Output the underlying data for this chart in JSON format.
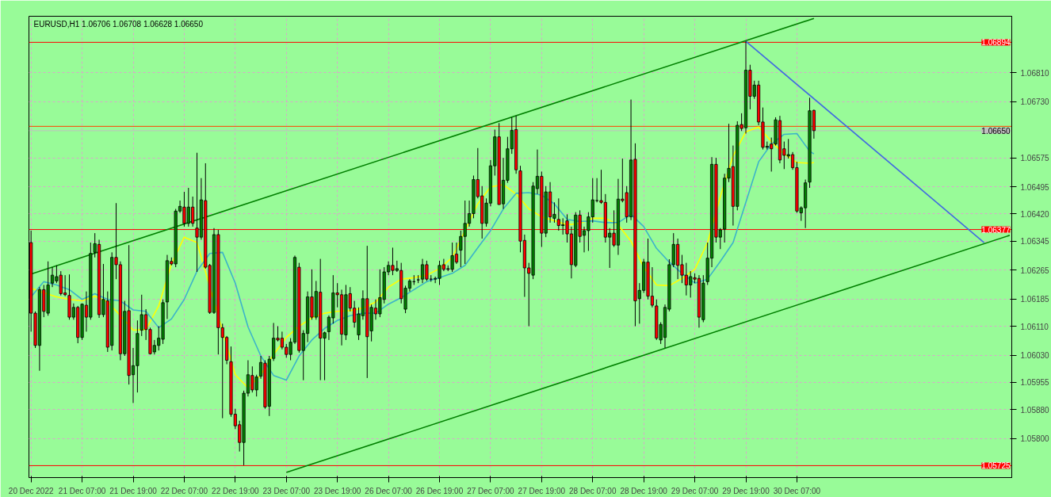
{
  "chart_data": {
    "type": "candlestick",
    "title": "EURUSD,H1  1.06706 1.06708 1.06628 1.06650",
    "categories": [
      "20 Dec 2022",
      null,
      null,
      null,
      null,
      null,
      null,
      null,
      null,
      null,
      null,
      null,
      "21 Dec 07:00",
      null,
      null,
      null,
      null,
      null,
      null,
      null,
      null,
      null,
      null,
      null,
      "21 Dec 19:00",
      null,
      null,
      null,
      null,
      null,
      null,
      null,
      null,
      null,
      null,
      null,
      "22 Dec 07:00",
      null,
      null,
      null,
      null,
      null,
      null,
      null,
      null,
      null,
      null,
      null,
      "22 Dec 19:00",
      null,
      null,
      null,
      null,
      null,
      null,
      null,
      null,
      null,
      null,
      null,
      "23 Dec 07:00",
      null,
      null,
      null,
      null,
      null,
      null,
      null,
      null,
      null,
      null,
      null,
      "23 Dec 19:00",
      null,
      null,
      null,
      null,
      null,
      null,
      null,
      null,
      null,
      null,
      null,
      "26 Dec 07:00",
      null,
      null,
      null,
      null,
      null,
      null,
      null,
      null,
      null,
      null,
      null,
      "26 Dec 19:00",
      null,
      null,
      null,
      null,
      null,
      null,
      null,
      null,
      null,
      null,
      null,
      "27 Dec 07:00",
      null,
      null,
      null,
      null,
      null,
      null,
      null,
      null,
      null,
      null,
      null,
      "27 Dec 19:00",
      null,
      null,
      null,
      null,
      null,
      null,
      null,
      null,
      null,
      null,
      null,
      "28 Dec 07:00",
      null,
      null,
      null,
      null,
      null,
      null,
      null,
      null,
      null,
      null,
      null,
      "28 Dec 19:00",
      null,
      null,
      null,
      null,
      null,
      null,
      null,
      null,
      null,
      null,
      null,
      "29 Dec 07:00",
      null,
      null,
      null,
      null,
      null,
      null,
      null,
      null,
      null,
      null,
      null,
      "29 Dec 19:00",
      null,
      null,
      null,
      null,
      null,
      null,
      null,
      null,
      null,
      null,
      null,
      "30 Dec 07:00",
      null,
      null,
      null,
      null,
      null,
      null,
      null,
      null,
      null,
      null,
      null,
      null,
      null,
      null,
      null,
      null,
      null,
      null,
      null,
      null,
      null,
      null,
      null,
      null,
      null,
      null,
      null,
      null,
      null,
      null,
      null,
      null,
      null,
      null,
      null,
      null,
      null,
      null,
      null,
      null,
      null,
      null,
      null,
      null,
      null,
      null,
      null,
      null,
      null,
      null
    ],
    "ohlc": [
      [
        1.06341,
        1.06374,
        1.06095,
        1.06146
      ],
      [
        1.06146,
        1.06151,
        1.0605,
        1.06057
      ],
      [
        1.06057,
        1.06218,
        1.05987,
        1.06211
      ],
      [
        1.06211,
        1.06224,
        1.06135,
        1.06151
      ],
      [
        1.06146,
        1.06289,
        1.06139,
        1.06224
      ],
      [
        1.06229,
        1.06273,
        1.06218,
        1.06251
      ],
      [
        1.06235,
        1.06278,
        1.06229,
        1.06247
      ],
      [
        1.06251,
        1.06262,
        1.06195,
        1.062
      ],
      [
        1.06202,
        1.06251,
        1.06193,
        1.06197
      ],
      [
        1.06195,
        1.06253,
        1.06128,
        1.06135
      ],
      [
        1.06135,
        1.06173,
        1.06128,
        1.06162
      ],
      [
        1.06162,
        1.06166,
        1.06063,
        1.06079
      ],
      [
        1.06079,
        1.06173,
        1.06072,
        1.06171
      ],
      [
        1.06168,
        1.06206,
        1.06095,
        1.06135
      ],
      [
        1.06135,
        1.06341,
        1.06128,
        1.06311
      ],
      [
        1.06314,
        1.06367,
        1.063,
        1.06338
      ],
      [
        1.06336,
        1.06349,
        1.06133,
        1.06142
      ],
      [
        1.06142,
        1.06282,
        1.06135,
        1.06184
      ],
      [
        1.0618,
        1.06206,
        1.06039,
        1.06052
      ],
      [
        1.06057,
        1.06314,
        1.06043,
        1.063
      ],
      [
        1.063,
        1.0645,
        1.0624,
        1.0628
      ],
      [
        1.0628,
        1.06289,
        1.06016,
        1.06034
      ],
      [
        1.06034,
        1.0618,
        1.06028,
        1.06151
      ],
      [
        1.06153,
        1.06334,
        1.05949,
        1.05974
      ],
      [
        1.05976,
        1.0605,
        1.05898,
        1.06001
      ],
      [
        1.06001,
        1.06126,
        1.05927,
        1.0609
      ],
      [
        1.06099,
        1.06197,
        1.06083,
        1.06142
      ],
      [
        1.06142,
        1.06157,
        1.06072,
        1.06101
      ],
      [
        1.06101,
        1.06106,
        1.06032,
        1.06034
      ],
      [
        1.06039,
        1.06072,
        1.06032,
        1.06057
      ],
      [
        1.06057,
        1.0611,
        1.06043,
        1.06077
      ],
      [
        1.06074,
        1.06184,
        1.06061,
        1.06175
      ],
      [
        1.06177,
        1.06307,
        1.0613,
        1.06291
      ],
      [
        1.06289,
        1.063,
        1.06278,
        1.06282
      ],
      [
        1.06282,
        1.06434,
        1.06273,
        1.06428
      ],
      [
        1.06428,
        1.06457,
        1.06423,
        1.06441
      ],
      [
        1.06439,
        1.06481,
        1.06385,
        1.06394
      ],
      [
        1.06394,
        1.06492,
        1.06385,
        1.06439
      ],
      [
        1.06439,
        1.06468,
        1.06385,
        1.06394
      ],
      [
        1.06381,
        1.06589,
        1.0626,
        1.06356
      ],
      [
        1.06356,
        1.06519,
        1.06349,
        1.06459
      ],
      [
        1.06457,
        1.0656,
        1.06269,
        1.06273
      ],
      [
        1.06278,
        1.06282,
        1.06144,
        1.06148
      ],
      [
        1.06148,
        1.06381,
        1.06144,
        1.06363
      ],
      [
        1.06363,
        1.06376,
        1.06032,
        1.06106
      ],
      [
        1.06106,
        1.06117,
        1.05856,
        1.06079
      ],
      [
        1.06079,
        1.06083,
        1.06005,
        1.06016
      ],
      [
        1.06012,
        1.06054,
        1.0586,
        1.05867
      ],
      [
        1.05867,
        1.05882,
        1.05826,
        1.05835
      ],
      [
        1.05838,
        1.05849,
        1.05764,
        1.05789
      ],
      [
        1.05789,
        1.05932,
        1.05726,
        1.05925
      ],
      [
        1.05925,
        1.06016,
        1.05916,
        1.05976
      ],
      [
        1.05974,
        1.05999,
        1.05927,
        1.05934
      ],
      [
        1.05934,
        1.05976,
        1.05916,
        1.0597
      ],
      [
        1.05972,
        1.06028,
        1.05965,
        1.0601
      ],
      [
        1.06008,
        1.06016,
        1.05882,
        1.05887
      ],
      [
        1.05889,
        1.06028,
        1.05862,
        1.06019
      ],
      [
        1.06021,
        1.06119,
        1.06014,
        1.06077
      ],
      [
        1.06077,
        1.0611,
        1.06068,
        1.06072
      ],
      [
        1.06077,
        1.06095,
        1.06046,
        1.06052
      ],
      [
        1.06052,
        1.06061,
        1.06023,
        1.06032
      ],
      [
        1.06032,
        1.06077,
        1.06016,
        1.06066
      ],
      [
        1.06066,
        1.06305,
        1.06061,
        1.063
      ],
      [
        1.06273,
        1.06285,
        1.06037,
        1.06043
      ],
      [
        1.06043,
        1.06099,
        1.05961,
        1.0609
      ],
      [
        1.0609,
        1.06206,
        1.06066,
        1.06191
      ],
      [
        1.06191,
        1.06267,
        1.06128,
        1.06135
      ],
      [
        1.06135,
        1.06235,
        1.06128,
        1.06206
      ],
      [
        1.06204,
        1.06296,
        1.05961,
        1.06077
      ],
      [
        1.06077,
        1.06095,
        1.05961,
        1.06092
      ],
      [
        1.06095,
        1.0614,
        1.06072,
        1.06135
      ],
      [
        1.06133,
        1.06251,
        1.06117,
        1.06202
      ],
      [
        1.06202,
        1.06229,
        1.06162,
        1.06197
      ],
      [
        1.06197,
        1.06211,
        1.06057,
        1.06088
      ],
      [
        1.06086,
        1.06224,
        1.06072,
        1.06197
      ],
      [
        1.062,
        1.06218,
        1.06151,
        1.0616
      ],
      [
        1.0616,
        1.0618,
        1.06106,
        1.06121
      ],
      [
        1.06086,
        1.06162,
        1.06072,
        1.06144
      ],
      [
        1.06139,
        1.06209,
        1.06128,
        1.06186
      ],
      [
        1.06186,
        1.06332,
        1.05967,
        1.06081
      ],
      [
        1.06097,
        1.0617,
        1.06068,
        1.06162
      ],
      [
        1.0616,
        1.06184,
        1.06128,
        1.06144
      ],
      [
        1.06144,
        1.06267,
        1.06135,
        1.06189
      ],
      [
        1.06184,
        1.06273,
        1.06173,
        1.0626
      ],
      [
        1.0626,
        1.06289,
        1.06251,
        1.06278
      ],
      [
        1.06278,
        1.06327,
        1.06251,
        1.06264
      ],
      [
        1.06264,
        1.06291,
        1.0626,
        1.06269
      ],
      [
        1.06264,
        1.06285,
        1.06173,
        1.06186
      ],
      [
        1.06157,
        1.06222,
        1.06146,
        1.06215
      ],
      [
        1.06215,
        1.0624,
        1.06206,
        1.06235
      ],
      [
        1.06233,
        1.06251,
        1.06224,
        1.06233
      ],
      [
        1.06238,
        1.06251,
        1.06229,
        1.06238
      ],
      [
        1.0624,
        1.06296,
        1.06229,
        1.0628
      ],
      [
        1.0628,
        1.06291,
        1.06235,
        1.0624
      ],
      [
        1.0624,
        1.06251,
        1.06233,
        1.0624
      ],
      [
        1.0624,
        1.06247,
        1.06229,
        1.06242
      ],
      [
        1.06242,
        1.06291,
        1.06224,
        1.06278
      ],
      [
        1.0628,
        1.06296,
        1.06262,
        1.06267
      ],
      [
        1.06267,
        1.06278,
        1.06262,
        1.06269
      ],
      [
        1.06267,
        1.06341,
        1.0626,
        1.06305
      ],
      [
        1.06309,
        1.06341,
        1.06282,
        1.06287
      ],
      [
        1.0632,
        1.06374,
        1.06273,
        1.06358
      ],
      [
        1.06358,
        1.06457,
        1.06282,
        1.06394
      ],
      [
        1.06394,
        1.06457,
        1.06385,
        1.06421
      ],
      [
        1.06421,
        1.06526,
        1.06408,
        1.06515
      ],
      [
        1.06515,
        1.06602,
        1.06463,
        1.06468
      ],
      [
        1.0647,
        1.06497,
        1.06352,
        1.06394
      ],
      [
        1.06394,
        1.06463,
        1.06385,
        1.0645
      ],
      [
        1.0645,
        1.06569,
        1.06441,
        1.06553
      ],
      [
        1.06553,
        1.06653,
        1.06526,
        1.06633
      ],
      [
        1.06633,
        1.06671,
        1.06446,
        1.06446
      ],
      [
        1.06448,
        1.06575,
        1.06434,
        1.06513
      ],
      [
        1.06513,
        1.06633,
        1.06506,
        1.066
      ],
      [
        1.066,
        1.06687,
        1.06586,
        1.06651
      ],
      [
        1.06653,
        1.06691,
        1.06531,
        1.06542
      ],
      [
        1.06539,
        1.06553,
        1.06314,
        1.06345
      ],
      [
        1.06347,
        1.06363,
        1.06191,
        1.06271
      ],
      [
        1.06271,
        1.06285,
        1.0611,
        1.06256
      ],
      [
        1.06251,
        1.06508,
        1.0624,
        1.06497
      ],
      [
        1.0649,
        1.06598,
        1.06475,
        1.06524
      ],
      [
        1.06524,
        1.06537,
        1.06329,
        1.06367
      ],
      [
        1.06367,
        1.06497,
        1.06356,
        1.06481
      ],
      [
        1.06481,
        1.06508,
        1.06396,
        1.06412
      ],
      [
        1.06408,
        1.06452,
        1.06396,
        1.06419
      ],
      [
        1.06405,
        1.06463,
        1.06374,
        1.06388
      ],
      [
        1.06388,
        1.06408,
        1.06363,
        1.0639
      ],
      [
        1.06401,
        1.06419,
        1.06341,
        1.06365
      ],
      [
        1.06365,
        1.06385,
        1.06242,
        1.0628
      ],
      [
        1.06278,
        1.06425,
        1.06273,
        1.06417
      ],
      [
        1.06417,
        1.0643,
        1.06341,
        1.06358
      ],
      [
        1.06361,
        1.06385,
        1.06314,
        1.06374
      ],
      [
        1.06374,
        1.06425,
        1.06318,
        1.06412
      ],
      [
        1.06412,
        1.06519,
        1.06396,
        1.06459
      ],
      [
        1.06457,
        1.06519,
        1.06452,
        1.06457
      ],
      [
        1.06457,
        1.06542,
        1.06448,
        1.06452
      ],
      [
        1.06452,
        1.06475,
        1.06341,
        1.06356
      ],
      [
        1.06356,
        1.06381,
        1.06271,
        1.06367
      ],
      [
        1.06367,
        1.0643,
        1.06329,
        1.06334
      ],
      [
        1.06334,
        1.06517,
        1.06307,
        1.06461
      ],
      [
        1.06461,
        1.06573,
        1.06452,
        1.06457
      ],
      [
        1.06479,
        1.06497,
        1.06396,
        1.06412
      ],
      [
        1.06412,
        1.06736,
        1.06403,
        1.06569
      ],
      [
        1.06571,
        1.06615,
        1.0611,
        1.0618
      ],
      [
        1.06186,
        1.06229,
        1.06117,
        1.06209
      ],
      [
        1.06209,
        1.06296,
        1.06202,
        1.06287
      ],
      [
        1.06287,
        1.06352,
        1.06184,
        1.06193
      ],
      [
        1.06193,
        1.06273,
        1.06162,
        1.06168
      ],
      [
        1.06166,
        1.06184,
        1.06072,
        1.06077
      ],
      [
        1.06072,
        1.06121,
        1.06061,
        1.06115
      ],
      [
        1.06079,
        1.0617,
        1.0605,
        1.06162
      ],
      [
        1.06157,
        1.06295,
        1.06151,
        1.0628
      ],
      [
        1.0628,
        1.06367,
        1.06273,
        1.06336
      ],
      [
        1.06336,
        1.06352,
        1.0624,
        1.06278
      ],
      [
        1.0628,
        1.06307,
        1.06229,
        1.06251
      ],
      [
        1.06251,
        1.06285,
        1.06195,
        1.06224
      ],
      [
        1.06224,
        1.06262,
        1.06189,
        1.06247
      ],
      [
        1.06244,
        1.06256,
        1.06229,
        1.0624
      ],
      [
        1.06242,
        1.06251,
        1.06106,
        1.06135
      ],
      [
        1.06128,
        1.06251,
        1.06121,
        1.06229
      ],
      [
        1.06233,
        1.06341,
        1.06224,
        1.06298
      ],
      [
        1.06298,
        1.06577,
        1.06273,
        1.06557
      ],
      [
        1.06557,
        1.06575,
        1.06341,
        1.06356
      ],
      [
        1.06356,
        1.06381,
        1.06323,
        1.06376
      ],
      [
        1.06378,
        1.06531,
        1.06341,
        1.06519
      ],
      [
        1.06519,
        1.06669,
        1.06508,
        1.06546
      ],
      [
        1.06551,
        1.06609,
        1.06388,
        1.06441
      ],
      [
        1.06441,
        1.06676,
        1.0643,
        1.06665
      ],
      [
        1.06667,
        1.06698,
        1.06649,
        1.06656
      ],
      [
        1.06658,
        1.06897,
        1.06642,
        1.06817
      ],
      [
        1.06817,
        1.06832,
        1.06709,
        1.06745
      ],
      [
        1.06745,
        1.06788,
        1.06738,
        1.06776
      ],
      [
        1.06776,
        1.06788,
        1.06665,
        1.06674
      ],
      [
        1.06674,
        1.06714,
        1.06598,
        1.06604
      ],
      [
        1.06604,
        1.0662,
        1.06598,
        1.06607
      ],
      [
        1.06613,
        1.06631,
        1.06537,
        1.066
      ],
      [
        1.06613,
        1.06687,
        1.06609,
        1.0668
      ],
      [
        1.06678,
        1.06691,
        1.0656,
        1.06569
      ],
      [
        1.066,
        1.0662,
        1.06544,
        1.06582
      ],
      [
        1.0658,
        1.06627,
        1.06573,
        1.06584
      ],
      [
        1.06584,
        1.06591,
        1.06542,
        1.06548
      ],
      [
        1.06548,
        1.06564,
        1.06423,
        1.06428
      ],
      [
        1.06423,
        1.06441,
        1.06401,
        1.06437
      ],
      [
        1.06437,
        1.06515,
        1.06381,
        1.06506
      ],
      [
        1.06508,
        1.06741,
        1.06492,
        1.06705
      ],
      [
        1.06706,
        1.06708,
        1.06628,
        1.0665
      ],
      null,
      null,
      null,
      null,
      null,
      null,
      null,
      null,
      null,
      null,
      null,
      null,
      null,
      null,
      null,
      null,
      null,
      null,
      null,
      null,
      null,
      null,
      null,
      null,
      null,
      null,
      null,
      null,
      null,
      null,
      null,
      null,
      null,
      null,
      null,
      null,
      null,
      null,
      null,
      null,
      null,
      null,
      null,
      null,
      null,
      null
    ],
    "series": [
      {
        "type": "line",
        "color": "#ffff00",
        "values": [
          1.06215,
          null,
          null,
          1.06202,
          null,
          null,
          1.06191,
          null,
          null,
          1.06184,
          null,
          null,
          1.0618,
          null,
          null,
          1.06193,
          null,
          null,
          1.06177,
          null,
          null,
          1.06139,
          null,
          null,
          1.06099,
          null,
          null,
          1.06101,
          null,
          null,
          1.06166,
          null,
          null,
          1.06282,
          null,
          null,
          1.06356,
          null,
          null,
          1.06341,
          null,
          null,
          null,
          null,
          null,
          null,
          null,
          null,
          1.05976,
          null,
          null,
          1.0594,
          null,
          null,
          1.05976,
          null,
          null,
          1.06032,
          null,
          null,
          1.06079,
          null,
          null,
          1.0611,
          null,
          null,
          1.06133,
          null,
          null,
          1.06146,
          null,
          null,
          1.06151,
          null,
          null,
          1.06153,
          null,
          null,
          1.0616,
          null,
          null,
          1.06177,
          null,
          null,
          1.06218,
          null,
          null,
          1.0624,
          null,
          null,
          1.06244,
          null,
          null,
          1.06251,
          null,
          null,
          1.06269,
          null,
          null,
          1.063,
          null,
          null,
          null,
          null,
          null,
          1.06448,
          null,
          null,
          1.06495,
          null,
          null,
          1.06501,
          null,
          null,
          1.06475,
          null,
          null,
          1.06434,
          null,
          null,
          1.06412,
          null,
          null,
          1.06401,
          null,
          null,
          1.0639,
          null,
          null,
          1.06394,
          null,
          null,
          1.06408,
          null,
          null,
          1.06408,
          null,
          null,
          1.0639,
          null,
          null,
          1.06345,
          null,
          null,
          1.06273,
          null,
          null,
          1.06224,
          null,
          null,
          1.06222,
          null,
          null,
          1.06242,
          null,
          null,
          1.06267,
          null,
          null,
          1.06341,
          null,
          null,
          1.06468,
          null,
          null,
          1.0658,
          null,
          null,
          1.06647,
          null,
          null,
          1.0666,
          null,
          null,
          1.0662,
          null,
          null,
          1.06586,
          null,
          null,
          1.06562,
          null,
          null,
          1.0656,
          1.06562,
          null,
          null,
          null,
          null,
          null,
          null,
          null,
          null,
          null,
          null,
          null,
          null,
          null,
          null,
          null,
          null,
          null,
          null,
          null,
          null,
          null,
          null,
          null,
          null,
          null,
          null,
          null,
          null,
          null,
          null,
          null,
          null,
          null,
          null,
          null,
          null,
          null,
          null,
          null,
          null,
          null,
          null,
          null,
          null,
          null,
          null
        ]
      },
      {
        "type": "line",
        "color": "#3cb4c8",
        "values": [
          1.06191,
          null,
          null,
          1.06233,
          null,
          null,
          1.06224,
          null,
          null,
          1.06211,
          null,
          null,
          1.06184,
          null,
          null,
          1.062,
          null,
          null,
          1.06184,
          null,
          null,
          1.0618,
          null,
          null,
          1.06155,
          null,
          null,
          1.06151,
          null,
          null,
          1.06106,
          null,
          null,
          1.0613,
          null,
          null,
          1.06184,
          null,
          null,
          1.06262,
          null,
          null,
          1.06311,
          null,
          null,
          1.06314,
          null,
          null,
          1.06229,
          null,
          null,
          1.06108,
          null,
          null,
          1.06028,
          null,
          null,
          1.05974,
          null,
          null,
          1.05961,
          null,
          null,
          1.06028,
          null,
          null,
          1.06072,
          null,
          null,
          1.06104,
          null,
          null,
          1.06126,
          null,
          null,
          1.06139,
          null,
          null,
          1.06146,
          null,
          null,
          1.06146,
          null,
          null,
          1.06171,
          null,
          null,
          1.06189,
          null,
          null,
          1.06211,
          null,
          null,
          1.06233,
          null,
          null,
          1.06244,
          null,
          null,
          1.06256,
          null,
          null,
          1.06278,
          null,
          null,
          1.06327,
          null,
          null,
          1.06374,
          null,
          null,
          1.06434,
          null,
          null,
          1.06477,
          null,
          null,
          1.06479,
          null,
          null,
          1.06472,
          null,
          null,
          1.06448,
          null,
          null,
          1.06405,
          null,
          null,
          1.06399,
          null,
          null,
          1.06401,
          null,
          null,
          1.06396,
          null,
          null,
          1.06396,
          null,
          null,
          1.06419,
          null,
          null,
          1.06385,
          null,
          null,
          1.06325,
          null,
          null,
          1.06287,
          null,
          null,
          1.06256,
          null,
          null,
          1.06229,
          null,
          null,
          1.0624,
          null,
          null,
          1.06289,
          null,
          null,
          1.06341,
          null,
          null,
          1.06452,
          null,
          null,
          1.06564,
          null,
          null,
          1.06613,
          null,
          null,
          1.0664,
          null,
          null,
          1.06642,
          null,
          null,
          1.06593,
          1.06586,
          null,
          null,
          null,
          null,
          null,
          null,
          null,
          null,
          null,
          null,
          null,
          null,
          null,
          null,
          null,
          null,
          null,
          null,
          null,
          null,
          null,
          null,
          null,
          null,
          null,
          null,
          null,
          null,
          null,
          null,
          null,
          null,
          null,
          null,
          null,
          null,
          null,
          null,
          null,
          null,
          null,
          null,
          null,
          null,
          null,
          null
        ]
      },
      {
        "type": "line",
        "color": "#008000",
        "values": [
          1.06254,
          null,
          null,
          null,
          null,
          null,
          null,
          null,
          null,
          null,
          null,
          null,
          null,
          null,
          null,
          null,
          null,
          null,
          null,
          null,
          null,
          null,
          null,
          null,
          null,
          null,
          null,
          null,
          null,
          null,
          null,
          null,
          null,
          null,
          null,
          null,
          null,
          null,
          null,
          null,
          null,
          null,
          null,
          null,
          null,
          null,
          null,
          null,
          null,
          null,
          null,
          null,
          null,
          null,
          null,
          null,
          null,
          null,
          null,
          null,
          null,
          null,
          null,
          null,
          null,
          null,
          null,
          null,
          null,
          null,
          null,
          null,
          null,
          null,
          null,
          null,
          null,
          null,
          null,
          null,
          null,
          null,
          null,
          null,
          null,
          null,
          null,
          null,
          null,
          null,
          null,
          null,
          null,
          null,
          null,
          null,
          null,
          null,
          null,
          null,
          null,
          null,
          null,
          null,
          null,
          null,
          null,
          null,
          null,
          null,
          null,
          null,
          null,
          null,
          null,
          null,
          null,
          null,
          null,
          null,
          null,
          null,
          null,
          null,
          null,
          null,
          null,
          null,
          null,
          null,
          null,
          null,
          null,
          null,
          null,
          null,
          null,
          null,
          null,
          null,
          null,
          null,
          null,
          null,
          null,
          null,
          null,
          null,
          null,
          null,
          null,
          null,
          null,
          null,
          null,
          null,
          null,
          null,
          null,
          null,
          null,
          null,
          null,
          null,
          null,
          null,
          null,
          null,
          null,
          null,
          null,
          null,
          null,
          null,
          null,
          null,
          null,
          null,
          null,
          null,
          null,
          null,
          null,
          null,
          1.0696,
          null,
          null,
          null,
          null,
          null,
          null,
          null,
          null,
          null,
          null,
          null,
          null,
          null,
          null,
          null,
          null,
          null,
          null,
          null,
          null,
          null,
          null,
          null,
          null,
          null,
          null,
          null,
          null,
          null,
          null,
          null,
          null,
          null,
          null,
          null,
          null,
          null,
          null,
          null,
          null,
          null,
          null,
          null,
          null,
          null,
          null
        ]
      },
      {
        "type": "line",
        "color": "#008000",
        "values": [
          null,
          null,
          null,
          null,
          null,
          null,
          null,
          null,
          null,
          null,
          null,
          null,
          null,
          null,
          null,
          null,
          null,
          null,
          null,
          null,
          null,
          null,
          null,
          null,
          null,
          null,
          null,
          null,
          null,
          null,
          null,
          null,
          null,
          null,
          null,
          null,
          null,
          null,
          null,
          null,
          null,
          null,
          null,
          null,
          null,
          null,
          null,
          null,
          null,
          null,
          null,
          null,
          null,
          null,
          null,
          null,
          null,
          null,
          null,
          null,
          1.05706,
          null,
          null,
          null,
          null,
          null,
          null,
          null,
          null,
          null,
          null,
          null,
          null,
          null,
          null,
          null,
          null,
          null,
          null,
          null,
          null,
          null,
          null,
          null,
          null,
          null,
          null,
          null,
          null,
          null,
          null,
          null,
          null,
          null,
          null,
          null,
          null,
          null,
          null,
          null,
          null,
          null,
          null,
          null,
          null,
          null,
          null,
          null,
          null,
          null,
          null,
          null,
          null,
          null,
          null,
          null,
          null,
          null,
          null,
          null,
          null,
          null,
          null,
          null,
          null,
          null,
          null,
          null,
          null,
          null,
          null,
          null,
          null,
          null,
          null,
          null,
          null,
          null,
          null,
          null,
          null,
          null,
          null,
          null,
          null,
          null,
          null,
          null,
          null,
          null,
          null,
          null,
          null,
          null,
          null,
          null,
          null,
          null,
          null,
          null,
          null,
          null,
          null,
          null,
          null,
          null,
          null,
          null,
          null,
          null,
          null,
          null,
          null,
          null,
          null,
          null,
          null,
          null,
          null,
          null,
          null,
          null,
          null,
          null,
          null,
          null,
          null,
          null,
          null,
          null,
          null,
          null,
          null,
          null,
          null,
          null,
          null,
          null,
          null,
          null,
          null,
          null,
          null,
          null,
          null,
          null,
          null,
          null,
          null,
          null,
          null,
          null,
          null,
          null,
          null,
          null,
          null,
          null,
          null,
          null,
          null,
          null,
          null,
          null,
          null,
          null,
          null,
          null,
          null,
          null,
          1.06361
        ]
      },
      {
        "type": "line",
        "color": "#4169e1",
        "values": [
          null,
          null,
          null,
          null,
          null,
          null,
          null,
          null,
          null,
          null,
          null,
          null,
          null,
          null,
          null,
          null,
          null,
          null,
          null,
          null,
          null,
          null,
          null,
          null,
          null,
          null,
          null,
          null,
          null,
          null,
          null,
          null,
          null,
          null,
          null,
          null,
          null,
          null,
          null,
          null,
          null,
          null,
          null,
          null,
          null,
          null,
          null,
          null,
          null,
          null,
          null,
          null,
          null,
          null,
          null,
          null,
          null,
          null,
          null,
          null,
          null,
          null,
          null,
          null,
          null,
          null,
          null,
          null,
          null,
          null,
          null,
          null,
          null,
          null,
          null,
          null,
          null,
          null,
          null,
          null,
          null,
          null,
          null,
          null,
          null,
          null,
          null,
          null,
          null,
          null,
          null,
          null,
          null,
          null,
          null,
          null,
          null,
          null,
          null,
          null,
          null,
          null,
          null,
          null,
          null,
          null,
          null,
          null,
          null,
          null,
          null,
          null,
          null,
          null,
          null,
          null,
          null,
          null,
          null,
          null,
          null,
          null,
          null,
          null,
          null,
          null,
          null,
          null,
          null,
          null,
          null,
          null,
          null,
          null,
          null,
          null,
          null,
          null,
          null,
          null,
          null,
          null,
          null,
          null,
          null,
          null,
          null,
          null,
          null,
          null,
          null,
          null,
          null,
          null,
          null,
          null,
          null,
          null,
          null,
          null,
          null,
          null,
          null,
          null,
          null,
          null,
          null,
          null,
          1.06897,
          null,
          null,
          null,
          null,
          null,
          null,
          null,
          null,
          null,
          null,
          null,
          null,
          null,
          null,
          null,
          null,
          null,
          null,
          null,
          null,
          null,
          null,
          null,
          null,
          null,
          null,
          null,
          null,
          null,
          null,
          null,
          null,
          null,
          null,
          null,
          null,
          null,
          null,
          null,
          null,
          null,
          null,
          null,
          null,
          null,
          null,
          null,
          null,
          null,
          null,
          null,
          null,
          null,
          null,
          null,
          1.06341,
          null,
          null,
          null,
          null,
          null,
          null
        ]
      }
    ],
    "ylim": [
      1.05692,
      1.06966
    ],
    "yticks": [
      {
        "value": 1.0681,
        "label": "1.06810"
      },
      {
        "value": 1.0673,
        "label": "1.06730"
      },
      1.06575,
      1.06495,
      {
        "value": 1.0642,
        "label": "1.06420"
      },
      1.06345,
      1.06265,
      1.06185,
      {
        "value": 1.0611,
        "label": "1.06110"
      },
      {
        "value": 1.0603,
        "label": "1.06030"
      },
      1.05955,
      {
        "value": 1.0588,
        "label": "1.05880"
      },
      {
        "value": 1.058,
        "label": "1.05800"
      }
    ],
    "ref_lines": [
      {
        "axis": "y",
        "value": 1.06894,
        "label": "1.06894",
        "color": "#ff0000"
      },
      {
        "axis": "y",
        "value": 1.06662,
        "label": null,
        "color": "#ff4500"
      },
      {
        "axis": "y",
        "value": 1.0665,
        "label": "1.06650",
        "color": "#c0c0c0"
      },
      {
        "axis": "y",
        "value": 1.06377,
        "label": "1.06377",
        "color": "#ff0000"
      },
      {
        "axis": "y",
        "value": 1.05725,
        "label": "1.05725",
        "color": "#ff0000"
      }
    ],
    "grid": true,
    "line_style": "solid"
  }
}
